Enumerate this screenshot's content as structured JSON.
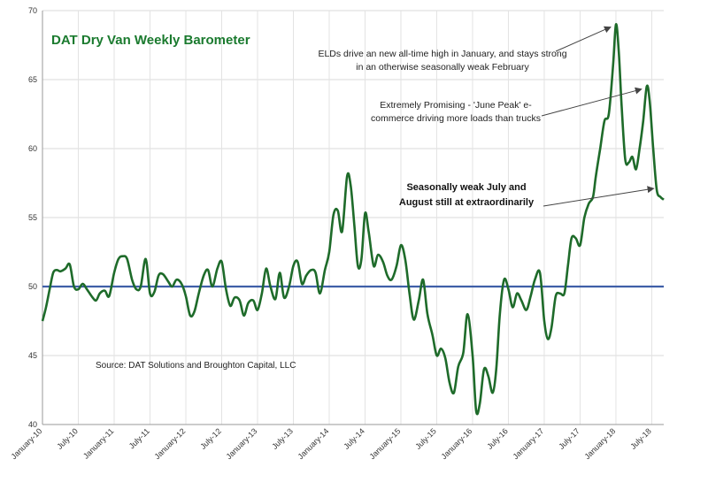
{
  "chart_data": {
    "type": "line",
    "title": "DAT Dry Van Weekly Barometer",
    "source": "Source: DAT Solutions and Broughton Capital, LLC",
    "ylim": [
      40,
      70
    ],
    "y_ticks": [
      40,
      45,
      50,
      55,
      60,
      65,
      70
    ],
    "x_range": [
      2010.0,
      2018.667
    ],
    "x_tick_labels": [
      {
        "t": 2010.0,
        "label": "January-10"
      },
      {
        "t": 2010.5,
        "label": "July-10"
      },
      {
        "t": 2011.0,
        "label": "January-11"
      },
      {
        "t": 2011.5,
        "label": "July-11"
      },
      {
        "t": 2012.0,
        "label": "January-12"
      },
      {
        "t": 2012.5,
        "label": "July-12"
      },
      {
        "t": 2013.0,
        "label": "January-13"
      },
      {
        "t": 2013.5,
        "label": "July-13"
      },
      {
        "t": 2014.0,
        "label": "January-14"
      },
      {
        "t": 2014.5,
        "label": "July-14"
      },
      {
        "t": 2015.0,
        "label": "January-15"
      },
      {
        "t": 2015.5,
        "label": "July-15"
      },
      {
        "t": 2016.0,
        "label": "January-16"
      },
      {
        "t": 2016.5,
        "label": "July-16"
      },
      {
        "t": 2017.0,
        "label": "January-17"
      },
      {
        "t": 2017.5,
        "label": "July-17"
      },
      {
        "t": 2018.0,
        "label": "January-18"
      },
      {
        "t": 2018.5,
        "label": "July-18"
      }
    ],
    "reference_line": {
      "y": 50,
      "color": "#3f5fa8"
    },
    "grid": true,
    "series": [
      {
        "color": "#1e6b2a",
        "points": [
          [
            2010.0,
            47.5
          ],
          [
            2010.05,
            48.5
          ],
          [
            2010.1,
            49.8
          ],
          [
            2010.15,
            51.0
          ],
          [
            2010.2,
            51.2
          ],
          [
            2010.25,
            51.1
          ],
          [
            2010.32,
            51.3
          ],
          [
            2010.38,
            51.6
          ],
          [
            2010.44,
            50.0
          ],
          [
            2010.5,
            49.8
          ],
          [
            2010.56,
            50.2
          ],
          [
            2010.62,
            49.8
          ],
          [
            2010.7,
            49.2
          ],
          [
            2010.75,
            49.0
          ],
          [
            2010.8,
            49.5
          ],
          [
            2010.87,
            49.7
          ],
          [
            2010.93,
            49.3
          ],
          [
            2011.0,
            51.0
          ],
          [
            2011.06,
            52.0
          ],
          [
            2011.12,
            52.2
          ],
          [
            2011.18,
            52.0
          ],
          [
            2011.25,
            50.5
          ],
          [
            2011.31,
            49.8
          ],
          [
            2011.37,
            50.0
          ],
          [
            2011.44,
            52.0
          ],
          [
            2011.5,
            49.5
          ],
          [
            2011.56,
            49.6
          ],
          [
            2011.62,
            50.8
          ],
          [
            2011.68,
            50.9
          ],
          [
            2011.75,
            50.4
          ],
          [
            2011.81,
            50.0
          ],
          [
            2011.87,
            50.5
          ],
          [
            2011.94,
            50.2
          ],
          [
            2012.0,
            49.3
          ],
          [
            2012.06,
            47.9
          ],
          [
            2012.12,
            48.2
          ],
          [
            2012.18,
            49.5
          ],
          [
            2012.25,
            50.8
          ],
          [
            2012.31,
            51.2
          ],
          [
            2012.37,
            50.0
          ],
          [
            2012.44,
            51.3
          ],
          [
            2012.5,
            51.8
          ],
          [
            2012.56,
            49.8
          ],
          [
            2012.62,
            48.6
          ],
          [
            2012.68,
            49.2
          ],
          [
            2012.75,
            49.0
          ],
          [
            2012.81,
            47.9
          ],
          [
            2012.87,
            48.8
          ],
          [
            2012.94,
            49.0
          ],
          [
            2013.0,
            48.3
          ],
          [
            2013.06,
            49.5
          ],
          [
            2013.12,
            51.3
          ],
          [
            2013.18,
            50.0
          ],
          [
            2013.25,
            49.1
          ],
          [
            2013.31,
            51.0
          ],
          [
            2013.37,
            49.2
          ],
          [
            2013.44,
            50.0
          ],
          [
            2013.5,
            51.5
          ],
          [
            2013.56,
            51.8
          ],
          [
            2013.62,
            50.2
          ],
          [
            2013.68,
            50.8
          ],
          [
            2013.75,
            51.2
          ],
          [
            2013.81,
            51.0
          ],
          [
            2013.87,
            49.5
          ],
          [
            2013.94,
            51.2
          ],
          [
            2014.0,
            52.5
          ],
          [
            2014.06,
            55.2
          ],
          [
            2014.12,
            55.5
          ],
          [
            2014.18,
            54.0
          ],
          [
            2014.25,
            58.0
          ],
          [
            2014.3,
            57.3
          ],
          [
            2014.35,
            54.5
          ],
          [
            2014.4,
            51.5
          ],
          [
            2014.45,
            52.0
          ],
          [
            2014.5,
            55.3
          ],
          [
            2014.55,
            54.0
          ],
          [
            2014.62,
            51.5
          ],
          [
            2014.68,
            52.3
          ],
          [
            2014.75,
            51.8
          ],
          [
            2014.81,
            50.8
          ],
          [
            2014.87,
            50.5
          ],
          [
            2014.94,
            51.5
          ],
          [
            2015.0,
            53.0
          ],
          [
            2015.06,
            52.0
          ],
          [
            2015.12,
            49.5
          ],
          [
            2015.18,
            47.6
          ],
          [
            2015.25,
            49.0
          ],
          [
            2015.31,
            50.5
          ],
          [
            2015.37,
            48.0
          ],
          [
            2015.44,
            46.5
          ],
          [
            2015.5,
            45.0
          ],
          [
            2015.56,
            45.5
          ],
          [
            2015.62,
            44.8
          ],
          [
            2015.68,
            43.0
          ],
          [
            2015.74,
            42.3
          ],
          [
            2015.8,
            44.2
          ],
          [
            2015.87,
            45.2
          ],
          [
            2015.93,
            48.0
          ],
          [
            2016.0,
            45.0
          ],
          [
            2016.05,
            41.0
          ],
          [
            2016.1,
            41.5
          ],
          [
            2016.16,
            44.0
          ],
          [
            2016.22,
            43.5
          ],
          [
            2016.28,
            42.3
          ],
          [
            2016.33,
            44.0
          ],
          [
            2016.38,
            48.0
          ],
          [
            2016.44,
            50.5
          ],
          [
            2016.5,
            49.8
          ],
          [
            2016.56,
            48.5
          ],
          [
            2016.62,
            49.5
          ],
          [
            2016.68,
            49.0
          ],
          [
            2016.75,
            48.3
          ],
          [
            2016.81,
            49.3
          ],
          [
            2016.87,
            50.5
          ],
          [
            2016.94,
            51.0
          ],
          [
            2017.0,
            47.5
          ],
          [
            2017.05,
            46.2
          ],
          [
            2017.1,
            47.0
          ],
          [
            2017.16,
            49.3
          ],
          [
            2017.22,
            49.5
          ],
          [
            2017.28,
            49.5
          ],
          [
            2017.33,
            51.5
          ],
          [
            2017.38,
            53.5
          ],
          [
            2017.44,
            53.5
          ],
          [
            2017.5,
            53.0
          ],
          [
            2017.56,
            55.0
          ],
          [
            2017.62,
            56.0
          ],
          [
            2017.68,
            56.5
          ],
          [
            2017.72,
            58.0
          ],
          [
            2017.78,
            60.0
          ],
          [
            2017.84,
            62.0
          ],
          [
            2017.9,
            62.5
          ],
          [
            2017.96,
            66.0
          ],
          [
            2018.0,
            69.0
          ],
          [
            2018.04,
            67.0
          ],
          [
            2018.08,
            63.0
          ],
          [
            2018.13,
            59.2
          ],
          [
            2018.18,
            59.0
          ],
          [
            2018.23,
            59.4
          ],
          [
            2018.28,
            58.5
          ],
          [
            2018.33,
            60.0
          ],
          [
            2018.38,
            62.0
          ],
          [
            2018.43,
            64.5
          ],
          [
            2018.47,
            63.5
          ],
          [
            2018.52,
            60.0
          ],
          [
            2018.57,
            57.0
          ],
          [
            2018.62,
            56.5
          ],
          [
            2018.667,
            56.3
          ]
        ]
      }
    ],
    "annotations": [
      {
        "lines": [
          "ELDs drive an new all-time high in January, and stays strong",
          "in an otherwise seasonally weak February"
        ],
        "bold": false,
        "arrow_to": [
          2018.0,
          69.0
        ]
      },
      {
        "lines": [
          "Extremely Promising - 'June Peak' e-",
          "commerce driving more loads than trucks"
        ],
        "bold": false,
        "arrow_to": [
          2018.43,
          64.5
        ]
      },
      {
        "lines": [
          "Seasonally weak July and",
          "August still at extraordinarily"
        ],
        "bold": true,
        "arrow_to": [
          2018.6,
          57.3
        ]
      }
    ]
  }
}
